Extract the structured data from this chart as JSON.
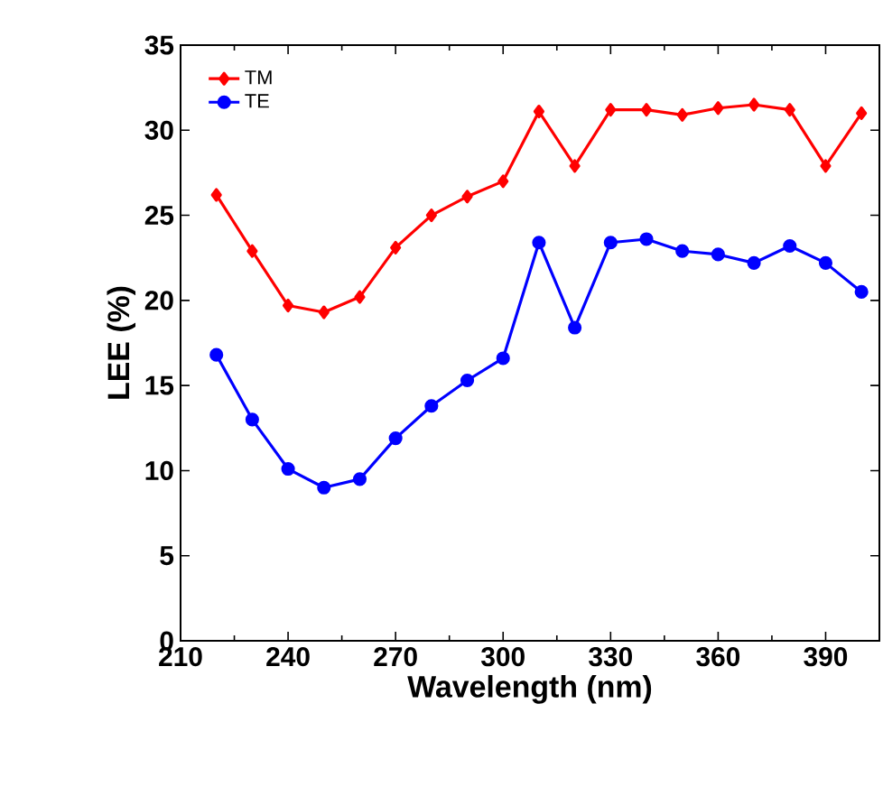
{
  "chart_data": {
    "type": "line",
    "xlabel": "Wavelength (nm)",
    "ylabel": "LEE (%)",
    "x": [
      220,
      230,
      240,
      250,
      260,
      270,
      280,
      290,
      300,
      310,
      320,
      330,
      340,
      350,
      360,
      370,
      380,
      390,
      400
    ],
    "series": [
      {
        "name": "TM",
        "color": "#ff0000",
        "marker": "diamond",
        "values": [
          26.2,
          22.9,
          19.7,
          19.3,
          20.2,
          23.1,
          25.0,
          26.1,
          27.0,
          31.1,
          27.9,
          31.2,
          31.2,
          30.9,
          31.3,
          31.5,
          31.2,
          27.9,
          31.0
        ]
      },
      {
        "name": "TE",
        "color": "#0000ff",
        "marker": "circle",
        "values": [
          16.8,
          13.0,
          10.1,
          9.0,
          9.5,
          11.9,
          13.8,
          15.3,
          16.6,
          23.4,
          18.4,
          23.4,
          23.6,
          22.9,
          22.7,
          22.2,
          23.2,
          22.2,
          20.5
        ]
      }
    ],
    "xlim": [
      210,
      405
    ],
    "xticks": [
      210,
      240,
      270,
      300,
      330,
      360,
      390
    ],
    "ylim": [
      0,
      35
    ],
    "yticks": [
      0,
      5,
      10,
      15,
      20,
      25,
      30,
      35
    ],
    "legend": "top left",
    "line_style": "solid"
  }
}
